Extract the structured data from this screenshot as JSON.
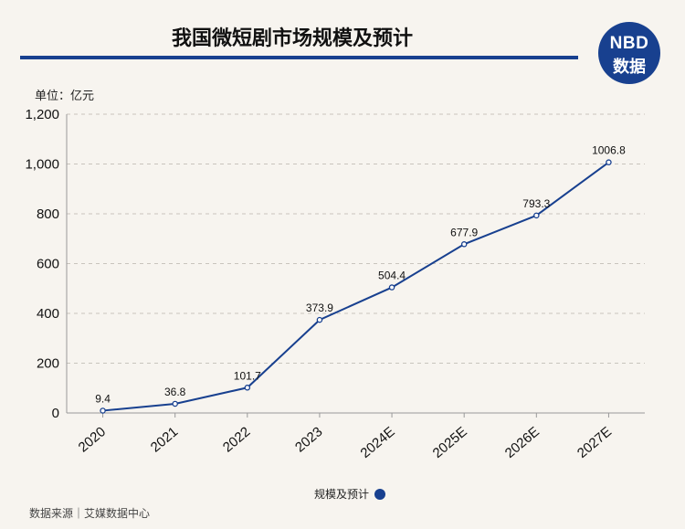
{
  "title": "我国微短剧市场规模及预计",
  "logo": {
    "line1": "NBD",
    "line2": "数据"
  },
  "unit_label": "单位：亿元",
  "source": "数据来源｜艾媒数据中心",
  "colors": {
    "series": "#18408f",
    "grid": "#c8c4bd",
    "background": "#f7f4ef"
  },
  "chart_data": {
    "type": "line",
    "categories": [
      "2020",
      "2021",
      "2022",
      "2023",
      "2024E",
      "2025E",
      "2026E",
      "2027E"
    ],
    "series": [
      {
        "name": "规模及预计",
        "values": [
          9.4,
          36.8,
          101.7,
          373.9,
          504.4,
          677.9,
          793.3,
          1006.8
        ]
      }
    ],
    "data_labels": [
      "9.4",
      "36.8",
      "101.7",
      "373.9",
      "504.4",
      "677.9",
      "793.3",
      "1006.8"
    ],
    "yticks": [
      0,
      200,
      400,
      600,
      800,
      1000,
      1200
    ],
    "ytick_labels": [
      "0",
      "200",
      "400",
      "600",
      "800",
      "1,000",
      "1,200"
    ],
    "ylim": [
      0,
      1200
    ],
    "grid": true,
    "legend_position": "bottom-center"
  }
}
